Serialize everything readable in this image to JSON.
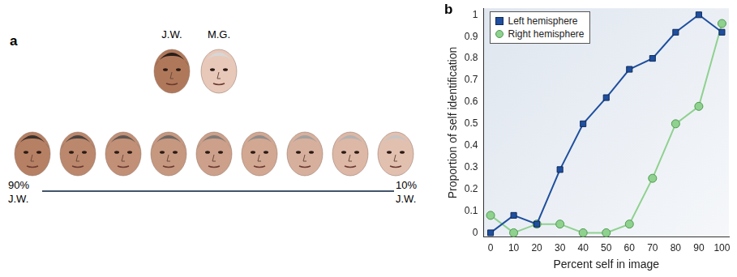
{
  "panel_a": {
    "label": "a",
    "top_faces": [
      "J.W.",
      "M.G."
    ],
    "scale_start": [
      "90%",
      "J.W."
    ],
    "scale_end": [
      "10%",
      "J.W."
    ]
  },
  "chart_data": {
    "type": "line",
    "title": "b",
    "x_label": "Percent self in image",
    "y_label": "Proportion of self identification",
    "x": [
      0,
      10,
      20,
      30,
      40,
      50,
      60,
      70,
      80,
      90,
      100
    ],
    "xlim": [
      -3,
      103
    ],
    "xticks": [
      0,
      10,
      20,
      30,
      40,
      50,
      60,
      70,
      80,
      90,
      100
    ],
    "ylim": [
      -0.02,
      1.03
    ],
    "yticks": [
      0,
      0.1,
      0.2,
      0.3,
      0.4,
      0.5,
      0.6,
      0.7,
      0.8,
      0.9,
      1
    ],
    "legend": "upper left",
    "series": [
      {
        "name": "Left hemisphere",
        "color": "#1f4f9e",
        "marker": "square",
        "values": [
          0,
          0.08,
          0.04,
          0.29,
          0.5,
          0.62,
          0.75,
          0.8,
          0.92,
          1.0,
          0.92
        ]
      },
      {
        "name": "Right hemisphere",
        "color": "#8fd18f",
        "marker": "circle",
        "values": [
          0.08,
          0,
          0.04,
          0.04,
          0,
          0,
          0.04,
          0.25,
          0.5,
          0.58,
          0.96
        ]
      }
    ]
  }
}
